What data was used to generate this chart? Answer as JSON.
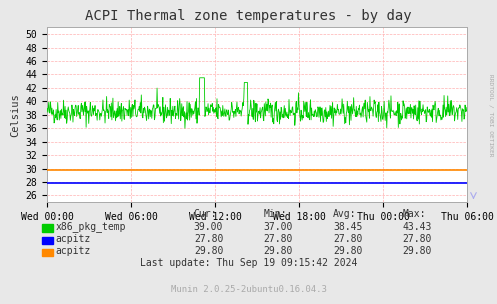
{
  "title": "ACPI Thermal zone temperatures - by day",
  "ylabel": "Celsius",
  "bg_color": "#e8e8e8",
  "plot_bg_color": "#ffffff",
  "ylim": [
    25,
    51
  ],
  "yticks": [
    26,
    28,
    30,
    32,
    34,
    36,
    38,
    40,
    42,
    44,
    46,
    48,
    50
  ],
  "xtick_labels": [
    "Wed 00:00",
    "Wed 06:00",
    "Wed 12:00",
    "Wed 18:00",
    "Thu 00:00",
    "Thu 06:00"
  ],
  "series": [
    {
      "name": "x86_pkg_temp",
      "color": "#00cc00",
      "constant": false,
      "value": 38.45,
      "min": 37.0,
      "max": 43.43,
      "cur": 39.0
    },
    {
      "name": "acpitz",
      "color": "#0000ff",
      "constant": true,
      "value": 27.8,
      "min": 27.8,
      "max": 27.8,
      "cur": 27.8
    },
    {
      "name": "acpitz",
      "color": "#ff8800",
      "constant": true,
      "value": 29.8,
      "min": 29.8,
      "max": 29.8,
      "cur": 29.8
    }
  ],
  "legend_headers": [
    "Cur:",
    "Min:",
    "Avg:",
    "Max:"
  ],
  "last_update": "Last update: Thu Sep 19 09:15:42 2024",
  "footer": "Munin 2.0.25-2ubuntu0.16.04.3",
  "right_label": "RRDTOOL / TOBI OETIKER",
  "title_fontsize": 10,
  "axis_fontsize": 7,
  "legend_fontsize": 7
}
